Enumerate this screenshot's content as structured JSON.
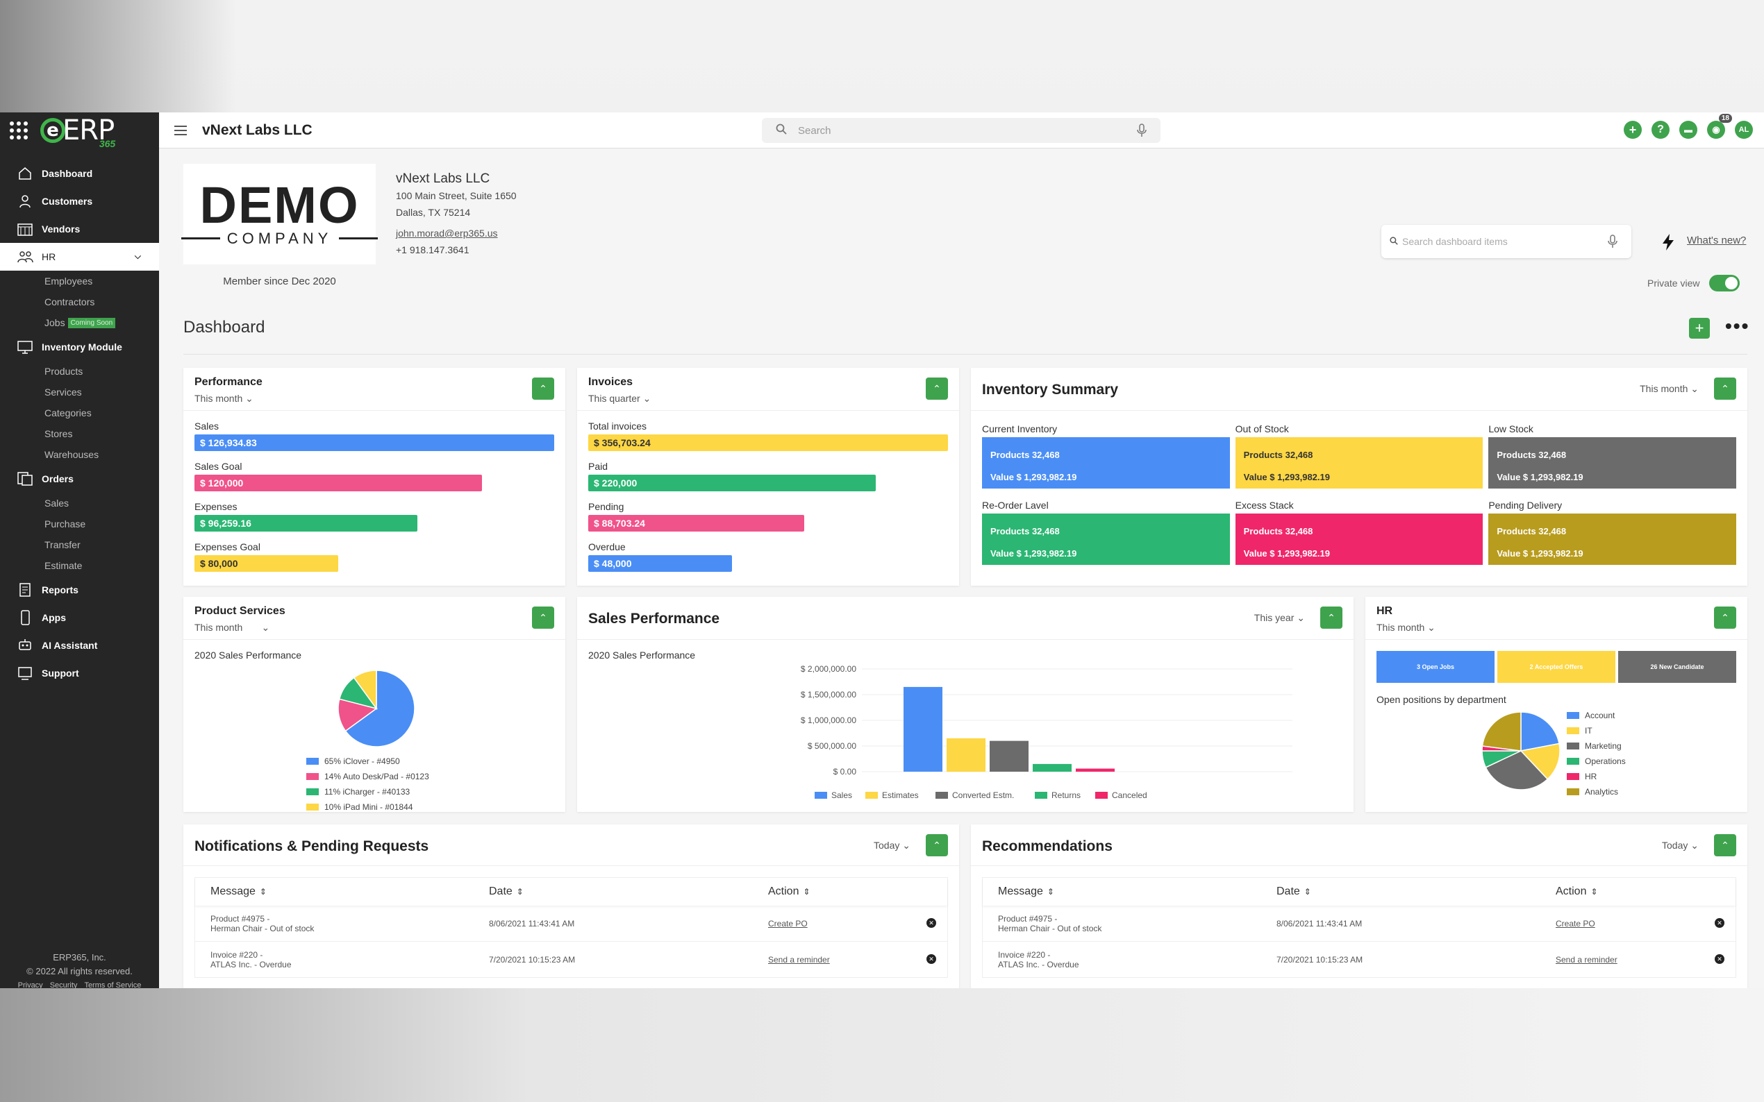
{
  "app": {
    "logo_text": "ERP",
    "logo_sub": "365",
    "company": "vNext Labs LLC"
  },
  "search": {
    "placeholder": "Search"
  },
  "topbar": {
    "notification_count": "18",
    "avatar": "AL"
  },
  "sidebar": {
    "items": [
      {
        "label": "Dashboard",
        "icon": "home-icon"
      },
      {
        "label": "Customers",
        "icon": "user-icon"
      },
      {
        "label": "Vendors",
        "icon": "store-icon"
      },
      {
        "label": "HR",
        "icon": "people-icon"
      }
    ],
    "hr_sub": [
      "Employees",
      "Contractors",
      "Jobs"
    ],
    "coming_soon": "Coming Soon",
    "inventory": "Inventory Module",
    "inventory_sub": [
      "Products",
      "Services",
      "Categories",
      "Stores",
      "Warehouses"
    ],
    "orders": "Orders",
    "orders_sub": [
      "Sales",
      "Purchase",
      "Transfer",
      "Estimate"
    ],
    "bottom": [
      "Reports",
      "Apps",
      "AI Assistant",
      "Support"
    ],
    "footer": {
      "company": "ERP365, Inc.",
      "rights": "© 2022 All rights reserved.",
      "links": [
        "Privacy",
        "Security",
        "Terms of Service"
      ]
    }
  },
  "profile": {
    "logo_big": "DEMO",
    "logo_small": "COMPANY",
    "member_since": "Member since Dec 2020",
    "name": "vNext Labs LLC",
    "street": "100 Main Street, Suite 1650",
    "city": "Dallas, TX 75214",
    "email": "john.morad@erp365.us",
    "phone": "+1 918.147.3641"
  },
  "dashboard_search": {
    "placeholder": "Search dashboard items"
  },
  "whats_new": "What's new?",
  "private_view": "Private view",
  "dashboard_title": "Dashboard",
  "performance": {
    "title": "Performance",
    "period": "This month",
    "rows": [
      {
        "label": "Sales",
        "value": "$ 126,934.83",
        "fraction": 1.0,
        "color": "#4a8ef5"
      },
      {
        "label": "Sales Goal",
        "value": "$ 120,000",
        "fraction": 0.8,
        "color": "#f0528a"
      },
      {
        "label": "Expenses",
        "value": "$ 96,259.16",
        "fraction": 0.62,
        "color": "#2bb673"
      },
      {
        "label": "Expenses Goal",
        "value": "$ 80,000",
        "fraction": 0.4,
        "color": "#fdd744"
      }
    ]
  },
  "invoices": {
    "title": "Invoices",
    "period": "This quarter",
    "rows": [
      {
        "label": "Total invoices",
        "value": "$ 356,703.24",
        "fraction": 1.0,
        "color": "#fdd744"
      },
      {
        "label": "Paid",
        "value": "$ 220,000",
        "fraction": 0.8,
        "color": "#2bb673"
      },
      {
        "label": "Pending",
        "value": "$ 88,703.24",
        "fraction": 0.6,
        "color": "#f0528a"
      },
      {
        "label": "Overdue",
        "value": "$ 48,000",
        "fraction": 0.4,
        "color": "#4a8ef5"
      }
    ]
  },
  "inventory_summary": {
    "title": "Inventory Summary",
    "period": "This month",
    "cells": [
      {
        "label": "Current Inventory",
        "products": "Products 32,468",
        "value": "Value $ 1,293,982.19",
        "color": "#4a8ef5"
      },
      {
        "label": "Out of Stock",
        "products": "Products 32,468",
        "value": "Value $ 1,293,982.19",
        "color": "#fdd744"
      },
      {
        "label": "Low Stock",
        "products": "Products 32,468",
        "value": "Value $ 1,293,982.19",
        "color": "#6b6b6b"
      },
      {
        "label": "Re-Order Lavel",
        "products": "Products 32,468",
        "value": "Value $ 1,293,982.19",
        "color": "#2bb673"
      },
      {
        "label": "Excess Stack",
        "products": "Products 32,468",
        "value": "Value $ 1,293,982.19",
        "color": "#f0266a"
      },
      {
        "label": "Pending Delivery",
        "products": "Products 32,468",
        "value": "Value $ 1,293,982.19",
        "color": "#b89c1e"
      }
    ]
  },
  "product_services": {
    "title": "Product Services",
    "period": "This month",
    "subtitle": "2020 Sales Performance",
    "slices": [
      {
        "label": "65% iClover - #4950",
        "value": 65,
        "color": "#4a8ef5"
      },
      {
        "label": "14% Auto Desk/Pad - #0123",
        "value": 14,
        "color": "#f0528a"
      },
      {
        "label": "11% iCharger - #40133",
        "value": 11,
        "color": "#2bb673"
      },
      {
        "label": "10% iPad Mini - #01844",
        "value": 10,
        "color": "#fdd744"
      }
    ]
  },
  "sales_performance": {
    "title": "Sales Performance",
    "period": "This year",
    "subtitle": "2020 Sales Performance"
  },
  "chart_data": {
    "type": "bar",
    "categories": [
      "Sales",
      "Estimates",
      "Converted Estm.",
      "Returns",
      "Canceled"
    ],
    "values": [
      1650000,
      650000,
      600000,
      150000,
      60000
    ],
    "colors": [
      "#4a8ef5",
      "#fdd744",
      "#6b6b6b",
      "#2bb673",
      "#f0266a"
    ],
    "yticks": [
      "$ 2,000,000.00",
      "$ 1,500,000.00",
      "$ 1,000,000.00",
      "$ 500,000.00",
      "$ 0.00"
    ],
    "ylim": [
      0,
      2000000
    ],
    "grid": true,
    "legend": "bottom"
  },
  "hr": {
    "title": "HR",
    "period": "This month",
    "tiles": [
      {
        "label": "3 Open Jobs",
        "color": "#4a8ef5"
      },
      {
        "label": "2 Accepted Offers",
        "color": "#fdd744"
      },
      {
        "label": "26 New Candidate",
        "color": "#6b6b6b"
      }
    ],
    "subtitle": "Open positions by department",
    "slices": [
      {
        "label": "Account",
        "value": 22,
        "color": "#4a8ef5"
      },
      {
        "label": "IT",
        "value": 16,
        "color": "#fdd744"
      },
      {
        "label": "Marketing",
        "value": 30,
        "color": "#6b6b6b"
      },
      {
        "label": "Operations",
        "value": 7,
        "color": "#2bb673"
      },
      {
        "label": "HR",
        "value": 2,
        "color": "#f0266a"
      },
      {
        "label": "Analytics",
        "value": 23,
        "color": "#b89c1e"
      }
    ]
  },
  "notifications": {
    "title": "Notifications & Pending Requests",
    "period": "Today",
    "headers": [
      "Message",
      "Date",
      "Action"
    ],
    "rows": [
      {
        "msg1": "Product #4975 -",
        "msg2": "Herman Chair - Out of stock",
        "date": "8/06/2021 11:43:41 AM",
        "action": "Create PO"
      },
      {
        "msg1": "Invoice #220 -",
        "msg2": "ATLAS Inc. - Overdue",
        "date": "7/20/2021 10:15:23 AM",
        "action": "Send a reminder"
      }
    ]
  },
  "recommendations": {
    "title": "Recommendations",
    "period": "Today",
    "headers": [
      "Message",
      "Date",
      "Action"
    ],
    "rows": [
      {
        "msg1": "Product #4975 -",
        "msg2": "Herman Chair - Out of stock",
        "date": "8/06/2021 11:43:41 AM",
        "action": "Create PO"
      },
      {
        "msg1": "Invoice #220 -",
        "msg2": "ATLAS Inc. - Overdue",
        "date": "7/20/2021 10:15:23 AM",
        "action": "Send a reminder"
      }
    ]
  }
}
